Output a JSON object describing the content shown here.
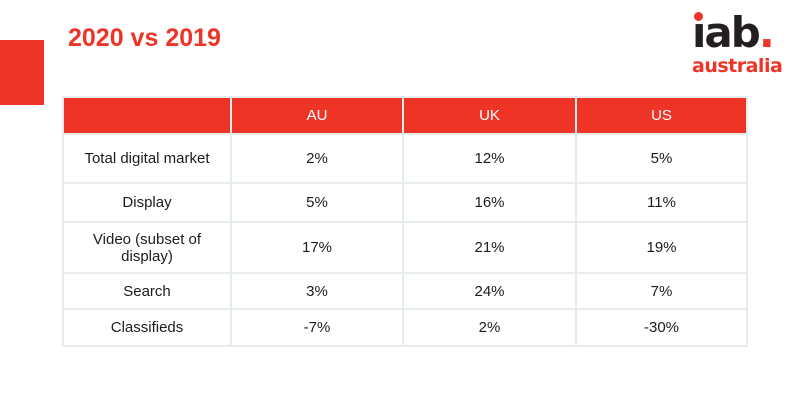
{
  "slide": {
    "title": "2020 vs 2019"
  },
  "logo": {
    "text": "iab.",
    "letters": "ıab",
    "period": ".",
    "subtitle": "australia"
  },
  "colors": {
    "brand_red": "#ED3426",
    "logo_black": "#231F20",
    "table_border": "#E7ECEF",
    "header_text": "#FFFFFF",
    "body_text": "#1C1C1C"
  },
  "table": {
    "columns": [
      "",
      "AU",
      "UK",
      "US"
    ],
    "rows": [
      {
        "label": "Total digital market",
        "values": [
          "2%",
          "12%",
          "5%"
        ]
      },
      {
        "label": "Display",
        "values": [
          "5%",
          "16%",
          "11%"
        ]
      },
      {
        "label": "Video (subset of display)",
        "values": [
          "17%",
          "21%",
          "19%"
        ]
      },
      {
        "label": "Search",
        "values": [
          "3%",
          "24%",
          "7%"
        ]
      },
      {
        "label": "Classifieds",
        "values": [
          "-7%",
          "2%",
          "-30%"
        ]
      }
    ]
  },
  "chart_data": {
    "type": "table",
    "title": "2020 vs 2019",
    "unit": "%",
    "categories": [
      "Total digital market",
      "Display",
      "Video (subset of display)",
      "Search",
      "Classifieds"
    ],
    "series": [
      {
        "name": "AU",
        "values": [
          2,
          5,
          17,
          3,
          -7
        ]
      },
      {
        "name": "UK",
        "values": [
          12,
          16,
          21,
          24,
          2
        ]
      },
      {
        "name": "US",
        "values": [
          5,
          11,
          19,
          7,
          -30
        ]
      }
    ]
  }
}
